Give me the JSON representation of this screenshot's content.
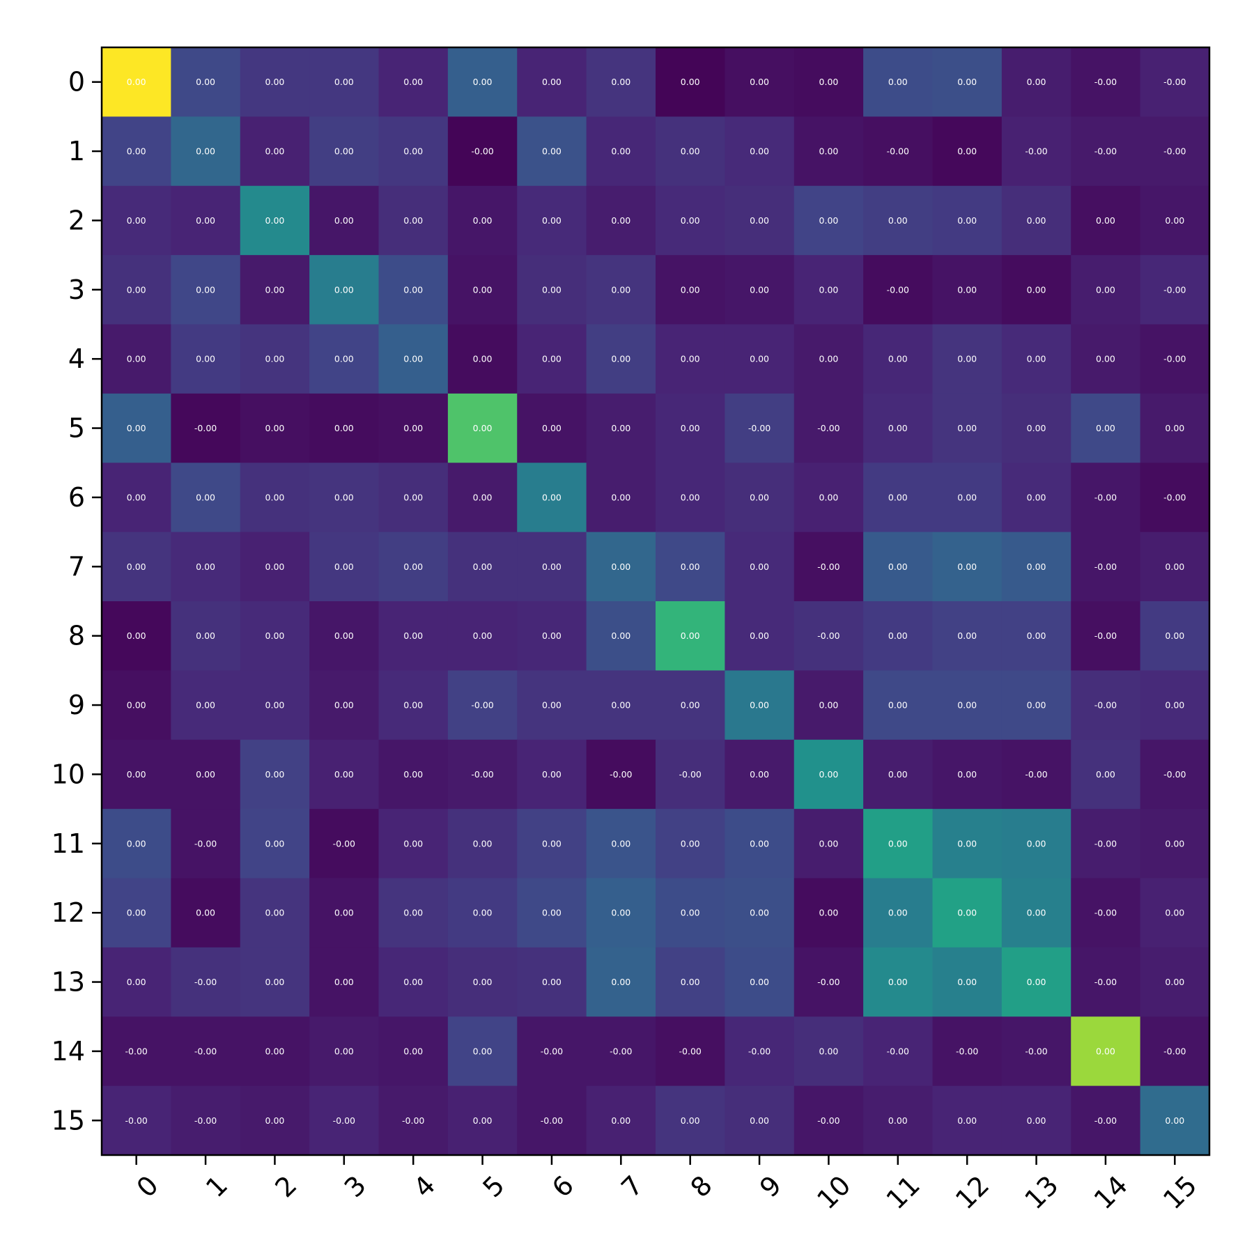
{
  "chart_data": {
    "type": "heatmap",
    "title": "",
    "xlabel": "",
    "ylabel": "",
    "colormap": "viridis",
    "x_tick_labels": [
      "0",
      "1",
      "2",
      "3",
      "4",
      "5",
      "6",
      "7",
      "8",
      "9",
      "10",
      "11",
      "12",
      "13",
      "14",
      "15"
    ],
    "y_tick_labels": [
      "0",
      "1",
      "2",
      "3",
      "4",
      "5",
      "6",
      "7",
      "8",
      "9",
      "10",
      "11",
      "12",
      "13",
      "14",
      "15"
    ],
    "color_intensity": [
      [
        1.0,
        0.22,
        0.16,
        0.16,
        0.1,
        0.3,
        0.1,
        0.15,
        0.01,
        0.04,
        0.03,
        0.23,
        0.24,
        0.08,
        0.05,
        0.09
      ],
      [
        0.2,
        0.33,
        0.09,
        0.18,
        0.16,
        0.01,
        0.25,
        0.11,
        0.14,
        0.12,
        0.05,
        0.04,
        0.02,
        0.09,
        0.07,
        0.07
      ],
      [
        0.12,
        0.1,
        0.47,
        0.06,
        0.13,
        0.06,
        0.12,
        0.08,
        0.12,
        0.13,
        0.2,
        0.18,
        0.17,
        0.13,
        0.04,
        0.06
      ],
      [
        0.14,
        0.21,
        0.07,
        0.42,
        0.23,
        0.05,
        0.13,
        0.15,
        0.05,
        0.06,
        0.1,
        0.03,
        0.05,
        0.03,
        0.08,
        0.11
      ],
      [
        0.07,
        0.17,
        0.15,
        0.2,
        0.3,
        0.03,
        0.1,
        0.18,
        0.1,
        0.1,
        0.07,
        0.11,
        0.15,
        0.12,
        0.07,
        0.05
      ],
      [
        0.3,
        0.02,
        0.04,
        0.03,
        0.04,
        0.72,
        0.05,
        0.08,
        0.11,
        0.18,
        0.07,
        0.12,
        0.15,
        0.13,
        0.22,
        0.07
      ],
      [
        0.1,
        0.22,
        0.14,
        0.15,
        0.13,
        0.07,
        0.42,
        0.08,
        0.11,
        0.13,
        0.09,
        0.17,
        0.17,
        0.12,
        0.06,
        0.03
      ],
      [
        0.15,
        0.12,
        0.09,
        0.16,
        0.18,
        0.14,
        0.14,
        0.33,
        0.22,
        0.12,
        0.04,
        0.28,
        0.31,
        0.28,
        0.06,
        0.08
      ],
      [
        0.02,
        0.14,
        0.12,
        0.06,
        0.1,
        0.1,
        0.11,
        0.24,
        0.65,
        0.12,
        0.14,
        0.17,
        0.19,
        0.19,
        0.04,
        0.17
      ],
      [
        0.04,
        0.12,
        0.12,
        0.07,
        0.12,
        0.19,
        0.15,
        0.15,
        0.15,
        0.4,
        0.07,
        0.22,
        0.22,
        0.22,
        0.13,
        0.12
      ],
      [
        0.05,
        0.05,
        0.19,
        0.09,
        0.06,
        0.07,
        0.1,
        0.03,
        0.13,
        0.07,
        0.5,
        0.08,
        0.06,
        0.05,
        0.14,
        0.06
      ],
      [
        0.23,
        0.05,
        0.2,
        0.03,
        0.1,
        0.14,
        0.19,
        0.26,
        0.19,
        0.23,
        0.08,
        0.56,
        0.43,
        0.42,
        0.08,
        0.07
      ],
      [
        0.2,
        0.03,
        0.15,
        0.05,
        0.15,
        0.17,
        0.22,
        0.3,
        0.23,
        0.24,
        0.03,
        0.42,
        0.57,
        0.43,
        0.05,
        0.09
      ],
      [
        0.1,
        0.14,
        0.15,
        0.05,
        0.11,
        0.13,
        0.14,
        0.31,
        0.19,
        0.23,
        0.05,
        0.47,
        0.43,
        0.56,
        0.06,
        0.08
      ],
      [
        0.05,
        0.05,
        0.05,
        0.07,
        0.06,
        0.2,
        0.06,
        0.06,
        0.04,
        0.11,
        0.13,
        0.1,
        0.05,
        0.06,
        0.85,
        0.05
      ],
      [
        0.1,
        0.08,
        0.07,
        0.1,
        0.07,
        0.09,
        0.06,
        0.09,
        0.15,
        0.13,
        0.06,
        0.08,
        0.1,
        0.1,
        0.06,
        0.35
      ]
    ],
    "cell_labels": [
      [
        "0.00",
        "0.00",
        "0.00",
        "0.00",
        "0.00",
        "0.00",
        "0.00",
        "0.00",
        "0.00",
        "0.00",
        "0.00",
        "0.00",
        "0.00",
        "0.00",
        "-0.00",
        "-0.00"
      ],
      [
        "0.00",
        "0.00",
        "0.00",
        "0.00",
        "0.00",
        "-0.00",
        "0.00",
        "0.00",
        "0.00",
        "0.00",
        "0.00",
        "-0.00",
        "0.00",
        "-0.00",
        "-0.00",
        "-0.00"
      ],
      [
        "0.00",
        "0.00",
        "0.00",
        "0.00",
        "0.00",
        "0.00",
        "0.00",
        "0.00",
        "0.00",
        "0.00",
        "0.00",
        "0.00",
        "0.00",
        "0.00",
        "0.00",
        "0.00"
      ],
      [
        "0.00",
        "0.00",
        "0.00",
        "0.00",
        "0.00",
        "0.00",
        "0.00",
        "0.00",
        "0.00",
        "0.00",
        "0.00",
        "-0.00",
        "0.00",
        "0.00",
        "0.00",
        "-0.00"
      ],
      [
        "0.00",
        "0.00",
        "0.00",
        "0.00",
        "0.00",
        "0.00",
        "0.00",
        "0.00",
        "0.00",
        "0.00",
        "0.00",
        "0.00",
        "0.00",
        "0.00",
        "0.00",
        "-0.00"
      ],
      [
        "0.00",
        "-0.00",
        "0.00",
        "0.00",
        "0.00",
        "0.00",
        "0.00",
        "0.00",
        "0.00",
        "-0.00",
        "-0.00",
        "0.00",
        "0.00",
        "0.00",
        "0.00",
        "0.00"
      ],
      [
        "0.00",
        "0.00",
        "0.00",
        "0.00",
        "0.00",
        "0.00",
        "0.00",
        "0.00",
        "0.00",
        "0.00",
        "0.00",
        "0.00",
        "0.00",
        "0.00",
        "-0.00",
        "-0.00"
      ],
      [
        "0.00",
        "0.00",
        "0.00",
        "0.00",
        "0.00",
        "0.00",
        "0.00",
        "0.00",
        "0.00",
        "0.00",
        "-0.00",
        "0.00",
        "0.00",
        "0.00",
        "-0.00",
        "0.00"
      ],
      [
        "0.00",
        "0.00",
        "0.00",
        "0.00",
        "0.00",
        "0.00",
        "0.00",
        "0.00",
        "0.00",
        "0.00",
        "-0.00",
        "0.00",
        "0.00",
        "0.00",
        "-0.00",
        "0.00"
      ],
      [
        "0.00",
        "0.00",
        "0.00",
        "0.00",
        "0.00",
        "-0.00",
        "0.00",
        "0.00",
        "0.00",
        "0.00",
        "0.00",
        "0.00",
        "0.00",
        "0.00",
        "-0.00",
        "0.00"
      ],
      [
        "0.00",
        "0.00",
        "0.00",
        "0.00",
        "0.00",
        "-0.00",
        "0.00",
        "-0.00",
        "-0.00",
        "0.00",
        "0.00",
        "0.00",
        "0.00",
        "-0.00",
        "0.00",
        "-0.00"
      ],
      [
        "0.00",
        "-0.00",
        "0.00",
        "-0.00",
        "0.00",
        "0.00",
        "0.00",
        "0.00",
        "0.00",
        "0.00",
        "0.00",
        "0.00",
        "0.00",
        "0.00",
        "-0.00",
        "0.00"
      ],
      [
        "0.00",
        "0.00",
        "0.00",
        "0.00",
        "0.00",
        "0.00",
        "0.00",
        "0.00",
        "0.00",
        "0.00",
        "0.00",
        "0.00",
        "0.00",
        "0.00",
        "-0.00",
        "0.00"
      ],
      [
        "0.00",
        "-0.00",
        "0.00",
        "0.00",
        "0.00",
        "0.00",
        "0.00",
        "0.00",
        "0.00",
        "0.00",
        "-0.00",
        "0.00",
        "0.00",
        "0.00",
        "-0.00",
        "0.00"
      ],
      [
        "-0.00",
        "-0.00",
        "0.00",
        "0.00",
        "0.00",
        "0.00",
        "-0.00",
        "-0.00",
        "-0.00",
        "-0.00",
        "0.00",
        "-0.00",
        "-0.00",
        "-0.00",
        "0.00",
        "-0.00"
      ],
      [
        "-0.00",
        "-0.00",
        "0.00",
        "-0.00",
        "-0.00",
        "0.00",
        "-0.00",
        "0.00",
        "0.00",
        "0.00",
        "-0.00",
        "0.00",
        "0.00",
        "0.00",
        "-0.00",
        "0.00"
      ]
    ],
    "grid": false,
    "legend": "none"
  }
}
